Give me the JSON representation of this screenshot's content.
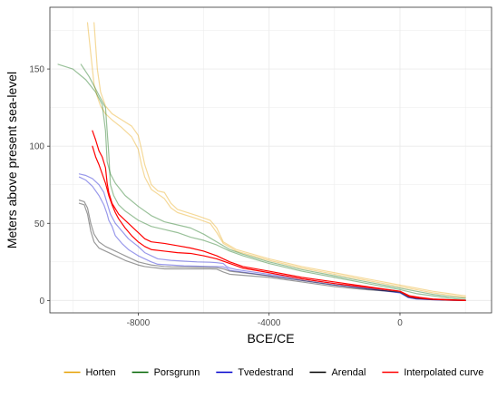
{
  "chart_data": {
    "type": "line",
    "xlabel": "BCE/CE",
    "ylabel": "Meters above present sea-level",
    "xlim": [
      -10700,
      2800
    ],
    "ylim": [
      -8,
      190
    ],
    "x_ticks": [
      -8000,
      -4000,
      0
    ],
    "x_tick_labels": [
      "-8000",
      "-4000",
      "0"
    ],
    "y_ticks": [
      0,
      50,
      100,
      150
    ],
    "y_tick_labels": [
      "0",
      "50",
      "100",
      "150"
    ],
    "grid": true,
    "legend_position": "bottom",
    "legend": [
      {
        "label": "Horten",
        "color": "#E69F00"
      },
      {
        "label": "Porsgrunn",
        "color": "#006400"
      },
      {
        "label": "Tvedestrand",
        "color": "#0000CD"
      },
      {
        "label": "Arendal",
        "color": "#000000"
      },
      {
        "label": "Interpolated curve",
        "color": "#FF0000"
      }
    ],
    "series": [
      {
        "group": "Horten",
        "color": "#E69F00",
        "opacity": 0.4,
        "x": [
          -9550,
          -9450,
          -9350,
          -9250,
          -9150,
          -9000,
          -8800,
          -8500,
          -8200,
          -8000,
          -7900,
          -7800,
          -7600,
          -7400,
          -7200,
          -7000,
          -6800,
          -6200,
          -5800,
          -5600,
          -5400,
          -5000,
          -4000,
          -3000,
          -2000,
          -1000,
          0,
          500,
          1000,
          1500,
          2000
        ],
        "y": [
          180,
          160,
          140,
          132,
          126,
          121,
          117,
          112,
          106,
          98,
          88,
          80,
          72,
          69,
          66,
          60,
          57,
          53,
          50,
          44,
          37,
          32,
          26,
          21,
          17,
          13,
          9,
          7,
          5,
          3.5,
          2
        ]
      },
      {
        "group": "Horten",
        "color": "#E69F00",
        "opacity": 0.4,
        "x": [
          -9350,
          -9300,
          -9250,
          -9150,
          -9000,
          -8800,
          -8500,
          -8200,
          -8000,
          -7900,
          -7800,
          -7600,
          -7400,
          -7200,
          -7000,
          -6800,
          -6200,
          -5800,
          -5600,
          -5400,
          -5000,
          -4000,
          -3000,
          -2000,
          -1000,
          0,
          500,
          1000,
          1500,
          2000
        ],
        "y": [
          180,
          165,
          150,
          135,
          126,
          121,
          117,
          113,
          107,
          98,
          88,
          75,
          71,
          70,
          63,
          59,
          55,
          52,
          47,
          38,
          33,
          27,
          22,
          18,
          14,
          10,
          8,
          6,
          4.5,
          3
        ]
      },
      {
        "group": "Porsgrunn",
        "color": "#006400",
        "opacity": 0.4,
        "x": [
          -10450,
          -10000,
          -9600,
          -9300,
          -9100,
          -9000,
          -8950,
          -8850,
          -8700,
          -8400,
          -8000,
          -7600,
          -7200,
          -6800,
          -6400,
          -6000,
          -5600,
          -5200,
          -4800,
          -4000,
          -3000,
          -2000,
          -1000,
          0,
          500,
          1000,
          1500,
          2000
        ],
        "y": [
          153,
          150,
          143,
          135,
          127,
          110,
          90,
          82,
          76,
          68,
          61,
          55,
          51,
          49,
          47,
          43,
          38,
          33,
          30,
          25,
          20,
          16,
          12,
          8,
          6,
          4,
          2.5,
          1.5
        ]
      },
      {
        "group": "Porsgrunn",
        "color": "#006400",
        "opacity": 0.4,
        "x": [
          -9750,
          -9500,
          -9250,
          -9000,
          -8950,
          -8900,
          -8850,
          -8750,
          -8600,
          -8400,
          -8000,
          -7600,
          -7200,
          -6800,
          -6400,
          -6000,
          -5600,
          -5200,
          -4800,
          -4000,
          -3000,
          -2000,
          -1000,
          0,
          500,
          1000,
          1500,
          2000
        ],
        "y": [
          153,
          145,
          135,
          125,
          110,
          95,
          75,
          68,
          62,
          58,
          52,
          48,
          46,
          44,
          41,
          39,
          36,
          32,
          29,
          24,
          19,
          15,
          11,
          7,
          4.5,
          3,
          1.5,
          0.5
        ]
      },
      {
        "group": "Tvedestrand",
        "color": "#0000CD",
        "opacity": 0.4,
        "x": [
          -9800,
          -9600,
          -9400,
          -9200,
          -9050,
          -8950,
          -8850,
          -8700,
          -8500,
          -8300,
          -8000,
          -7800,
          -7600,
          -7400,
          -7000,
          -6600,
          -6200,
          -5800,
          -5600,
          -5400,
          -5300,
          -5200,
          -5000,
          -4000,
          -3000,
          -2000,
          -1000,
          0,
          250,
          500,
          1000,
          1500,
          2000
        ],
        "y": [
          82,
          81,
          79,
          75,
          70,
          63,
          56,
          50,
          45,
          40,
          35,
          31,
          29,
          27,
          26,
          25.5,
          25,
          24.8,
          24.5,
          24,
          22,
          21,
          20,
          17,
          14,
          11,
          8,
          5,
          2,
          1,
          0.5,
          0.2,
          0
        ]
      },
      {
        "group": "Tvedestrand",
        "color": "#0000CD",
        "opacity": 0.4,
        "x": [
          -9800,
          -9600,
          -9400,
          -9200,
          -9050,
          -8950,
          -8900,
          -8800,
          -8700,
          -8500,
          -8300,
          -8000,
          -7800,
          -7600,
          -7400,
          -7000,
          -6600,
          -6200,
          -5800,
          -5600,
          -5400,
          -5300,
          -5200,
          -5000,
          -4000,
          -3000,
          -2000,
          -1000,
          0,
          250,
          500,
          1000,
          1500,
          2000
        ],
        "y": [
          80,
          78,
          74,
          68,
          62,
          56,
          52,
          48,
          42,
          37,
          33,
          29,
          27,
          25,
          23.5,
          23,
          22.5,
          22.3,
          22,
          22,
          21.8,
          21,
          19.5,
          19,
          16,
          13,
          10,
          7.5,
          5,
          2,
          1,
          0.5,
          0.2,
          0
        ]
      },
      {
        "group": "Arendal",
        "color": "#000000",
        "opacity": 0.4,
        "x": [
          -9800,
          -9650,
          -9550,
          -9450,
          -9350,
          -9200,
          -9000,
          -8800,
          -8600,
          -8400,
          -8200,
          -8000,
          -7800,
          -7600,
          -7400,
          -7200,
          -7000,
          -6600,
          -6200,
          -5800,
          -5600,
          -5400,
          -5200,
          -4000,
          -3000,
          -2000,
          -1000,
          0,
          250,
          500,
          1000,
          1500,
          2000
        ],
        "y": [
          65,
          64,
          60,
          50,
          43,
          38,
          35,
          33,
          31,
          29,
          27,
          25,
          24,
          23,
          22.5,
          22,
          21.8,
          21.7,
          21.6,
          21.5,
          21.3,
          20.5,
          19,
          16,
          13,
          10,
          7.5,
          5.5,
          2.5,
          1.5,
          0.8,
          0.3,
          0.1
        ]
      },
      {
        "group": "Arendal",
        "color": "#000000",
        "opacity": 0.4,
        "x": [
          -9800,
          -9650,
          -9550,
          -9450,
          -9350,
          -9200,
          -9000,
          -8800,
          -8600,
          -8400,
          -8200,
          -8000,
          -7800,
          -7600,
          -7400,
          -7200,
          -7000,
          -6600,
          -6200,
          -5800,
          -5600,
          -5400,
          -5200,
          -4000,
          -3000,
          -2000,
          -1000,
          0,
          250,
          500,
          1000,
          1500,
          2000
        ],
        "y": [
          63,
          62,
          56,
          45,
          38,
          34,
          32,
          30,
          28,
          26,
          24.5,
          23,
          22,
          21.5,
          21,
          20.5,
          20.5,
          20.5,
          20.5,
          20.5,
          20.3,
          18.5,
          17,
          15,
          12,
          9,
          7,
          5.5,
          2.3,
          1.3,
          0.6,
          0.2,
          0
        ]
      },
      {
        "group": "Interpolated curve",
        "color": "#FF0000",
        "opacity": 1,
        "x": [
          -9400,
          -9300,
          -9200,
          -9100,
          -9000,
          -8950,
          -8900,
          -8800,
          -8600,
          -8400,
          -8200,
          -8000,
          -7800,
          -7600,
          -7200,
          -6800,
          -6400,
          -6000,
          -5600,
          -5200,
          -4800,
          -4000,
          -3000,
          -2000,
          -1000,
          0,
          300,
          600,
          1000,
          1500,
          2000
        ],
        "y": [
          110,
          104,
          97,
          93,
          86,
          76,
          70,
          63,
          56,
          52,
          48,
          44,
          40,
          38,
          37,
          35.5,
          34,
          32,
          29,
          25,
          22,
          19,
          15,
          12,
          9,
          6,
          3,
          2,
          1,
          0.5,
          0.2
        ]
      },
      {
        "group": "Interpolated curve",
        "color": "#FF0000",
        "opacity": 1,
        "x": [
          -9400,
          -9300,
          -9200,
          -9100,
          -9000,
          -8900,
          -8800,
          -8700,
          -8600,
          -8400,
          -8200,
          -8000,
          -7800,
          -7600,
          -7200,
          -6800,
          -6400,
          -6000,
          -5600,
          -5200,
          -4800,
          -4000,
          -3000,
          -2000,
          -1000,
          0,
          300,
          600,
          1000,
          1500,
          2000
        ],
        "y": [
          100,
          93,
          88,
          82,
          76,
          68,
          62,
          57,
          53,
          47,
          42,
          38,
          35,
          33,
          32,
          31,
          30.5,
          29,
          27,
          24,
          21,
          18,
          14,
          11,
          8.5,
          6,
          2.5,
          1.5,
          0.8,
          0.3,
          0
        ]
      }
    ]
  }
}
